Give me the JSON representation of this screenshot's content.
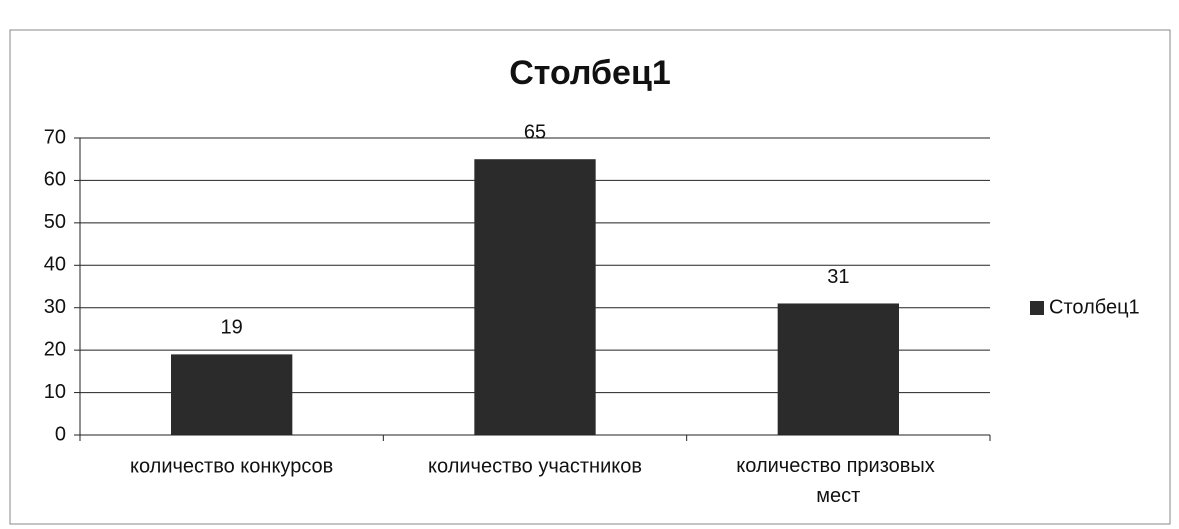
{
  "chart_data": {
    "type": "bar",
    "title": "Столбец1",
    "categories": [
      "количество конкурсов",
      "количество участников",
      "количество призовых мест"
    ],
    "series": [
      {
        "name": "Столбец1",
        "color": "#2b2b2b",
        "values": [
          19,
          65,
          31
        ]
      }
    ],
    "ylim": [
      0,
      70
    ],
    "yticks": [
      0,
      10,
      20,
      30,
      40,
      50,
      60,
      70
    ],
    "grid": true,
    "legend": "right"
  }
}
